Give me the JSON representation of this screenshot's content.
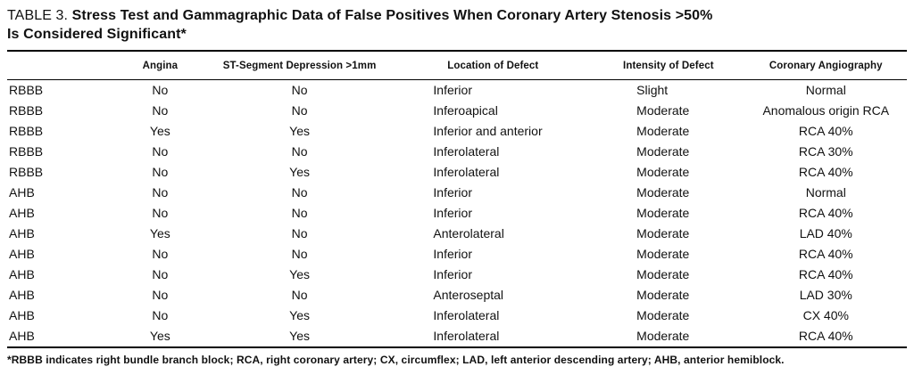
{
  "title": {
    "label": "TABLE 3.",
    "line1": "Stress Test and Gammagraphic Data of False Positives When Coronary Artery Stenosis >50%",
    "line2": "Is Considered Significant*"
  },
  "table": {
    "headers": [
      "",
      "Angina",
      "ST-Segment Depression >1mm",
      "Location of Defect",
      "Intensity of Defect",
      "Coronary Angiography"
    ],
    "rows": [
      [
        "RBBB",
        "No",
        "No",
        "Inferior",
        "Slight",
        "Normal"
      ],
      [
        "RBBB",
        "No",
        "No",
        "Inferoapical",
        "Moderate",
        "Anomalous origin RCA"
      ],
      [
        "RBBB",
        "Yes",
        "Yes",
        "Inferior and anterior",
        "Moderate",
        "RCA 40%"
      ],
      [
        "RBBB",
        "No",
        "No",
        "Inferolateral",
        "Moderate",
        "RCA 30%"
      ],
      [
        "RBBB",
        "No",
        "Yes",
        "Inferolateral",
        "Moderate",
        "RCA 40%"
      ],
      [
        "AHB",
        "No",
        "No",
        "Inferior",
        "Moderate",
        "Normal"
      ],
      [
        "AHB",
        "No",
        "No",
        "Inferior",
        "Moderate",
        "RCA 40%"
      ],
      [
        "AHB",
        "Yes",
        "No",
        "Anterolateral",
        "Moderate",
        "LAD 40%"
      ],
      [
        "AHB",
        "No",
        "No",
        "Inferior",
        "Moderate",
        "RCA 40%"
      ],
      [
        "AHB",
        "No",
        "Yes",
        "Inferior",
        "Moderate",
        "RCA 40%"
      ],
      [
        "AHB",
        "No",
        "No",
        "Anteroseptal",
        "Moderate",
        "LAD 30%"
      ],
      [
        "AHB",
        "No",
        "Yes",
        "Inferolateral",
        "Moderate",
        "CX 40%"
      ],
      [
        "AHB",
        "Yes",
        "Yes",
        "Inferolateral",
        "Moderate",
        "RCA 40%"
      ]
    ]
  },
  "footnote": "*RBBB indicates right bundle branch block; RCA, right coronary artery; CX, circumflex; LAD, left anterior descending artery; AHB, anterior hemiblock."
}
